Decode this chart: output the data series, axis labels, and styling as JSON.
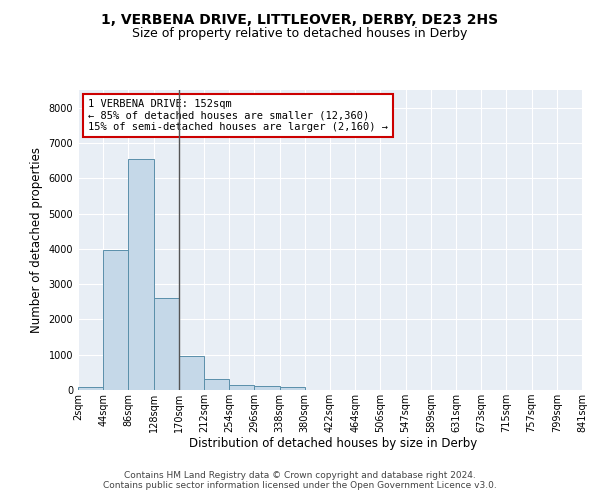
{
  "title": "1, VERBENA DRIVE, LITTLEOVER, DERBY, DE23 2HS",
  "subtitle": "Size of property relative to detached houses in Derby",
  "xlabel": "Distribution of detached houses by size in Derby",
  "ylabel": "Number of detached properties",
  "footer_line1": "Contains HM Land Registry data © Crown copyright and database right 2024.",
  "footer_line2": "Contains public sector information licensed under the Open Government Licence v3.0.",
  "annotation_line1": "1 VERBENA DRIVE: 152sqm",
  "annotation_line2": "← 85% of detached houses are smaller (12,360)",
  "annotation_line3": "15% of semi-detached houses are larger (2,160) →",
  "bar_values": [
    75,
    3980,
    6550,
    2620,
    950,
    310,
    130,
    105,
    80,
    0,
    0,
    0,
    0,
    0,
    0,
    0,
    0,
    0,
    0,
    0
  ],
  "categories": [
    "2sqm",
    "44sqm",
    "86sqm",
    "128sqm",
    "170sqm",
    "212sqm",
    "254sqm",
    "296sqm",
    "338sqm",
    "380sqm",
    "422sqm",
    "464sqm",
    "506sqm",
    "547sqm",
    "589sqm",
    "631sqm",
    "673sqm",
    "715sqm",
    "757sqm",
    "799sqm",
    "841sqm"
  ],
  "bar_color": "#c5d8e8",
  "bar_edge_color": "#5a8faa",
  "bg_color": "#e8eef5",
  "annotation_box_color": "#cc0000",
  "property_line_color": "#555555",
  "ylim": [
    0,
    8500
  ],
  "yticks": [
    0,
    1000,
    2000,
    3000,
    4000,
    5000,
    6000,
    7000,
    8000
  ],
  "property_bar_index": 3,
  "grid_color": "#ffffff",
  "title_fontsize": 10,
  "subtitle_fontsize": 9,
  "axis_label_fontsize": 8.5,
  "tick_fontsize": 7,
  "annotation_fontsize": 7.5,
  "footer_fontsize": 6.5
}
